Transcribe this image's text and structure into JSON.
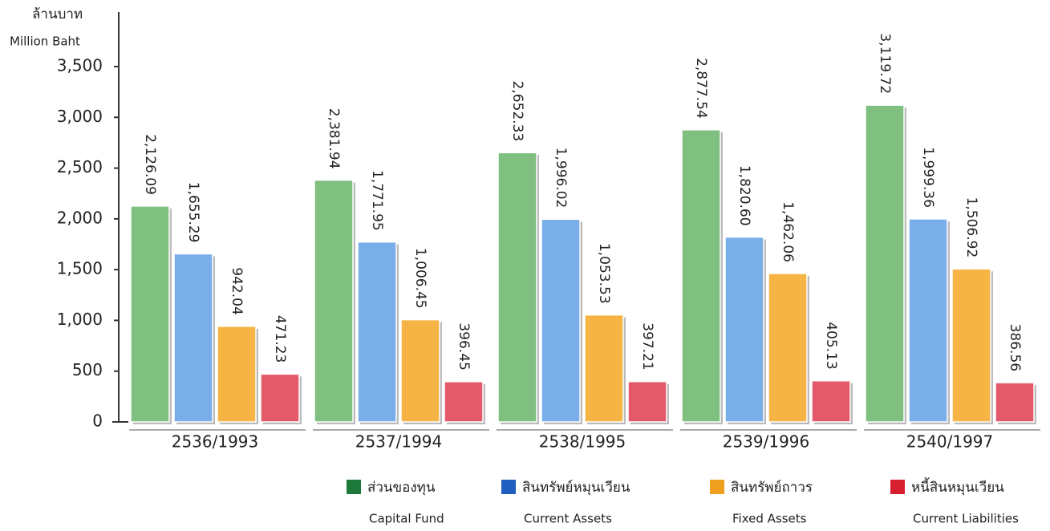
{
  "chart_data": {
    "type": "bar",
    "y_label_th": "ล้านบาท",
    "y_label": "Million Baht",
    "categories": [
      "2536/1993",
      "2537/1994",
      "2538/1995",
      "2539/1996",
      "2540/1997"
    ],
    "series": [
      {
        "name": "Capital Fund",
        "name_th": "ส่วนของทุน",
        "color": "#7fbf7f",
        "legend_color": "#1e7a3a",
        "values": [
          2126.09,
          2381.94,
          2652.33,
          2877.54,
          3119.72
        ],
        "value_labels": [
          "2,126.09",
          "2,381.94",
          "2,652.33",
          "2,877.54",
          "3,119.72"
        ]
      },
      {
        "name": "Current Assets",
        "name_th": "สินทรัพย์หมุนเวียน",
        "color": "#7aaee8",
        "legend_color": "#1e5fbf",
        "values": [
          1655.29,
          1771.95,
          1996.02,
          1820.6,
          1999.36
        ],
        "value_labels": [
          "1,655.29",
          "1,771.95",
          "1,996.02",
          "1,820.60",
          "1,999.36"
        ]
      },
      {
        "name": "Fixed Assets",
        "name_th": "สินทรัพย์ถาวร",
        "color": "#f5b443",
        "legend_color": "#f0a020",
        "values": [
          942.04,
          1006.45,
          1053.53,
          1462.06,
          1506.92
        ],
        "value_labels": [
          "942.04",
          "1,006.45",
          "1,053.53",
          "1,462.06",
          "1,506.92"
        ]
      },
      {
        "name": "Current Liabilities",
        "name_th": "หนี้สินหมุนเวียน",
        "color": "#e45a6a",
        "legend_color": "#d62030",
        "values": [
          471.23,
          396.45,
          397.21,
          405.13,
          386.56
        ],
        "value_labels": [
          "471.23",
          "396.45",
          "397.21",
          "405.13",
          "386.56"
        ]
      }
    ],
    "ylim": [
      0,
      3500
    ],
    "yticks": [
      0,
      500,
      {
        "value": 1000,
        "label": "1,000"
      },
      {
        "value": 1500,
        "label": "1,500"
      },
      {
        "value": 2000,
        "label": "2,000"
      },
      {
        "value": 2500,
        "label": "2,500"
      },
      {
        "value": 3000,
        "label": "3,000"
      },
      {
        "value": 3500,
        "label": "3,500"
      }
    ]
  }
}
